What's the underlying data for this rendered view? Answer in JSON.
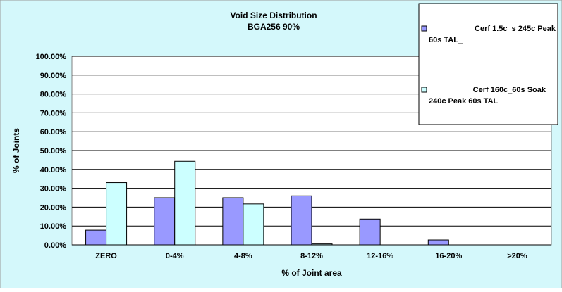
{
  "colors": {
    "background": "#d4f8fb",
    "plot_area": "#ffffff",
    "gridline": "#000000",
    "series1_fill": "#9999ff",
    "series2_fill": "#ccffff",
    "bar_stroke": "#000000",
    "legend_bg": "#ffffff"
  },
  "chart_data": {
    "type": "bar",
    "title": "Void Size Distribution",
    "subtitle": "BGA256 90%",
    "xlabel": "% of Joint area",
    "ylabel": "% of Joints",
    "categories": [
      "ZERO",
      "0-4%",
      "4-8%",
      "8-12%",
      "12-16%",
      "16-20%",
      ">20%"
    ],
    "ylim": [
      0,
      100
    ],
    "yticks": [
      "0.00%",
      "10.00%",
      "20.00%",
      "30.00%",
      "40.00%",
      "50.00%",
      "60.00%",
      "70.00%",
      "80.00%",
      "90.00%",
      "100.00%"
    ],
    "grid": true,
    "legend_position": "top-right",
    "series": [
      {
        "name": "Cerf 1.5c_s 245c Peak 60s TAL_",
        "legend_line1": "Cerf 1.5c_s 245c Peak",
        "legend_line2": "60s TAL_",
        "values": [
          7.8,
          25.0,
          25.0,
          26.0,
          13.7,
          2.6,
          0
        ]
      },
      {
        "name": "Cerf 160c_60s Soak 240c Peak 60s TAL",
        "legend_line1": "Cerf 160c_60s Soak",
        "legend_line2": "240c Peak 60s TAL",
        "values": [
          33.0,
          44.3,
          21.7,
          0.5,
          0,
          0,
          0
        ]
      }
    ]
  }
}
